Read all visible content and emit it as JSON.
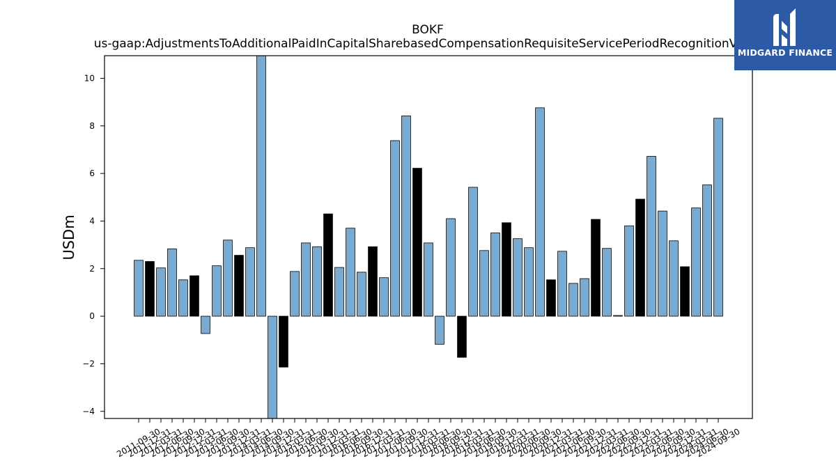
{
  "logo": {
    "text": "MIDGARD FINANCE",
    "icon": "midgard-logo-icon",
    "color": "#2d5aa6"
  },
  "chart_data": {
    "type": "bar",
    "title": "BOKF",
    "subtitle": "us-gaap:AdjustmentsToAdditionalPaidInCapitalSharebasedCompensationRequisiteServicePeriodRecognitionValue",
    "xlabel": "",
    "ylabel": "USDm",
    "ylim": [
      -4.3,
      10.95
    ],
    "yticks": [
      -4,
      -2,
      0,
      2,
      4,
      6,
      8,
      10
    ],
    "ytick_labels": [
      "−4",
      "−2",
      "0",
      "2",
      "4",
      "6",
      "8",
      "10"
    ],
    "grid": false,
    "colors": {
      "q123": "#7aaad0",
      "q4": "#000000",
      "edge": "#000000"
    },
    "categories": [
      "2011-09-30",
      "2011-12-31",
      "2012-03-31",
      "2012-06-30",
      "2012-09-30",
      "2012-12-31",
      "2013-03-31",
      "2013-06-30",
      "2013-09-30",
      "2013-12-31",
      "2014-03-31",
      "2014-06-30",
      "2014-09-30",
      "2014-12-31",
      "2015-03-31",
      "2015-06-30",
      "2015-09-30",
      "2015-12-31",
      "2016-03-31",
      "2016-06-30",
      "2016-09-30",
      "2016-12-31",
      "2017-03-31",
      "2017-06-30",
      "2017-09-30",
      "2017-12-31",
      "2018-03-31",
      "2018-06-30",
      "2018-09-30",
      "2018-12-31",
      "2019-03-31",
      "2019-06-30",
      "2019-09-30",
      "2019-12-31",
      "2020-03-31",
      "2020-06-30",
      "2020-09-30",
      "2020-12-31",
      "2021-03-31",
      "2021-06-30",
      "2021-09-30",
      "2021-12-31",
      "2022-03-31",
      "2022-06-30",
      "2022-09-30",
      "2022-12-31",
      "2023-03-31",
      "2023-06-30",
      "2023-09-30",
      "2023-12-31",
      "2024-03-31",
      "2024-06-30",
      "2024-09-30"
    ],
    "values": [
      2.35,
      2.3,
      2.03,
      2.83,
      1.53,
      1.7,
      -0.73,
      2.12,
      3.2,
      2.56,
      2.88,
      11.2,
      -4.3,
      -2.14,
      1.88,
      3.08,
      2.92,
      4.3,
      2.05,
      3.7,
      1.85,
      2.92,
      1.62,
      7.38,
      8.42,
      6.22,
      3.08,
      -1.18,
      4.1,
      -1.73,
      5.42,
      2.76,
      3.5,
      3.93,
      3.26,
      2.88,
      8.76,
      1.53,
      2.73,
      1.38,
      1.58,
      4.07,
      2.85,
      0.03,
      3.8,
      4.92,
      6.72,
      4.42,
      3.17,
      2.08,
      4.55,
      5.52,
      8.32
    ]
  }
}
